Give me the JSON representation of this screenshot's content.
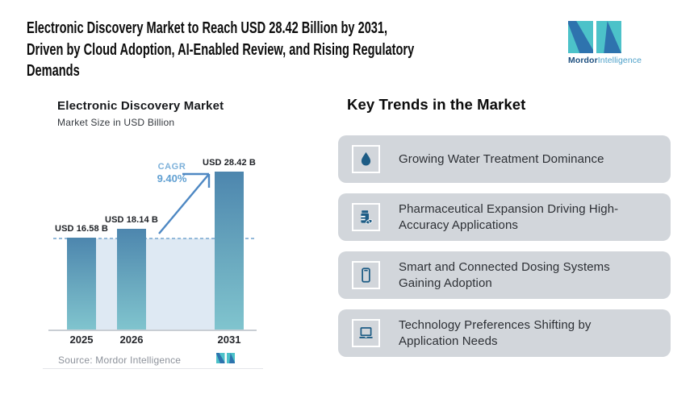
{
  "header": {
    "title": "Electronic Discovery Market to Reach USD 28.42 Billion by 2031, Driven by Cloud Adoption, AI-Enabled Review, and Rising Regulatory Demands",
    "title_lines": [
      "Electronic Discovery Market to Reach USD 28.42 Billion by 2031,",
      "Driven by Cloud Adoption, AI-Enabled Review, and Rising Regulatory",
      "Demands"
    ],
    "logo": {
      "brand_bold": "Mordor",
      "brand_light": "Intelligence"
    }
  },
  "chart": {
    "title": "Electronic Discovery Market",
    "subtitle": "Market Size in USD Billion",
    "cagr_label": "CAGR",
    "cagr_value": "9.40%",
    "source": "Source: Mordor Intelligence"
  },
  "chart_data": {
    "type": "bar",
    "title": "Electronic Discovery Market",
    "subtitle": "Market Size in USD Billion",
    "categories": [
      "2025",
      "2026",
      "2031"
    ],
    "values": [
      16.58,
      18.14,
      28.42
    ],
    "value_labels": [
      "USD 16.58 B",
      "USD 18.14 B",
      "USD 28.42 B"
    ],
    "unit": "USD Billion",
    "cagr": "9.40%",
    "cagr_period": "2026-2031",
    "ylim": [
      0,
      30
    ],
    "grid": false,
    "reference_line": 16.58,
    "bar_gradient_top": "#4d86ae",
    "bar_gradient_bottom": "#80c4ce",
    "highlight_area_color": "#dee9f3",
    "dashed_line_color": "#94bada",
    "arrow_color": "#4e88c3"
  },
  "trends": {
    "heading": "Key Trends in the Market",
    "items": [
      {
        "icon": "water-drop-icon",
        "label": "Growing Water Treatment Dominance"
      },
      {
        "icon": "pill-bottle-icon",
        "label": "Pharmaceutical Expansion Driving High-Accuracy Applications"
      },
      {
        "icon": "smartphone-icon",
        "label": "Smart and Connected Dosing Systems Gaining Adoption"
      },
      {
        "icon": "laptop-icon",
        "label": "Technology Preferences Shifting by Application Needs"
      }
    ]
  },
  "colors": {
    "card_background": "#d2d6db",
    "trend_icon": "#1d5c85",
    "logo_teal": "#4cc2c9",
    "logo_blue": "#2e73ae",
    "cagr_text": "#61a0d2",
    "source_text": "#8d929b"
  }
}
